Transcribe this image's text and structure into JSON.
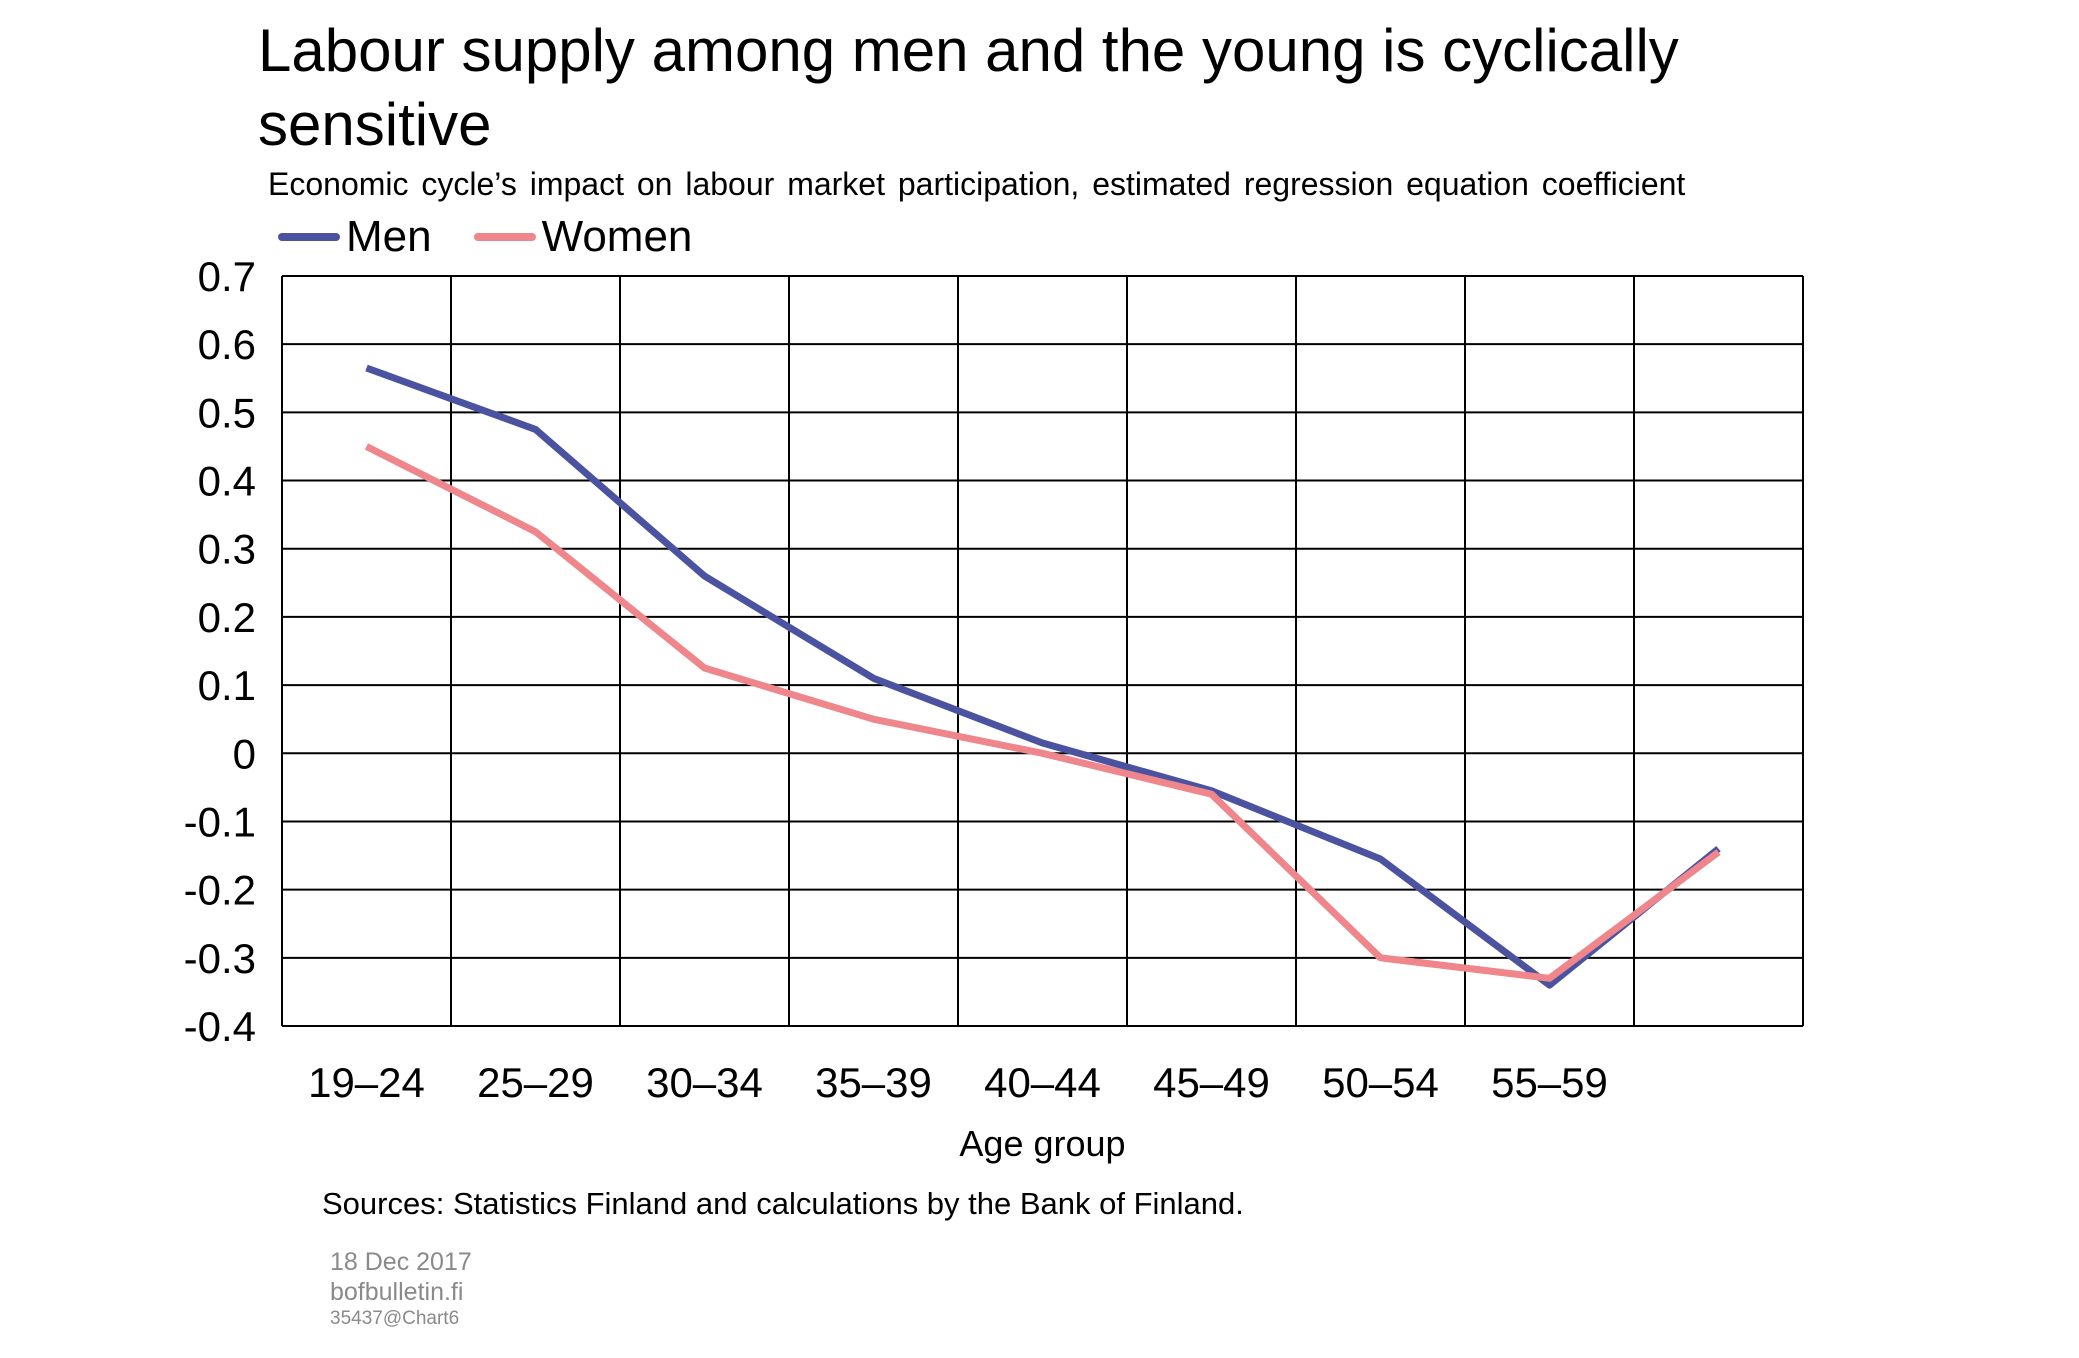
{
  "title": "Labour supply among men and the young is cyclically sensitive",
  "subtitle": "Economic cycle’s impact on labour market participation, estimated regression equation coefficient",
  "colors": {
    "men": "#4b53a1",
    "women": "#ef868b",
    "grid": "#000000"
  },
  "chart_data": {
    "type": "line",
    "categories": [
      "19–24",
      "25–29",
      "30–34",
      "35–39",
      "40–44",
      "45–49",
      "50–54",
      "55–59",
      ""
    ],
    "series": [
      {
        "name": "Men",
        "values": [
          0.565,
          0.475,
          0.26,
          0.11,
          0.015,
          -0.055,
          -0.155,
          -0.34,
          -0.14
        ]
      },
      {
        "name": "Women",
        "values": [
          0.45,
          0.325,
          0.125,
          0.05,
          0.0,
          -0.06,
          -0.3,
          -0.33,
          -0.145
        ]
      }
    ],
    "yticks": [
      "0.7",
      "0.6",
      "0.5",
      "0.4",
      "0.3",
      "0.2",
      "0.1",
      "0",
      "-0.1",
      "-0.2",
      "-0.3",
      "-0.4"
    ],
    "ylim": [
      -0.4,
      0.7
    ],
    "xlabel": "Age group",
    "ylabel": "",
    "grid": true,
    "legend": "top-left"
  },
  "footer": {
    "sources": "Sources: Statistics Finland and calculations by the Bank of Finland.",
    "date": "18 Dec 2017",
    "site": "bofbulletin.fi",
    "code": "35437@Chart6"
  }
}
